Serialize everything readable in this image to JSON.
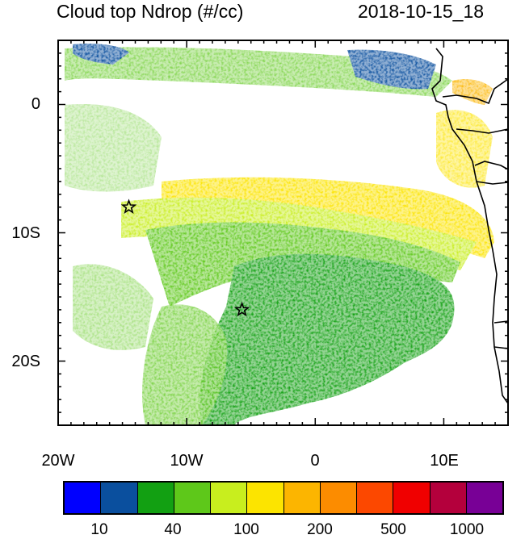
{
  "title": {
    "left": "Cloud top Ndrop (#/cc)",
    "right": "2018-10-15_18"
  },
  "map": {
    "y_ticks": [
      "0",
      "10S",
      "20S"
    ],
    "x_ticks": [
      "20W",
      "10W",
      "0",
      "10E"
    ],
    "lon_range": [
      -20,
      15
    ],
    "lat_range": [
      -25,
      5
    ],
    "markers": [
      {
        "name": "star",
        "lon": -14.5,
        "lat": -8
      },
      {
        "name": "star",
        "lon": -5.7,
        "lat": -16
      }
    ]
  },
  "colorbar": {
    "colors": [
      "#0000ff",
      "#0a4f9e",
      "#12a012",
      "#5ec81a",
      "#c8ee1e",
      "#fce400",
      "#fcb500",
      "#fc8c00",
      "#fc4800",
      "#f00000",
      "#b4003c",
      "#780096"
    ],
    "labels": [
      "10",
      "40",
      "100",
      "200",
      "500",
      "1000"
    ]
  }
}
